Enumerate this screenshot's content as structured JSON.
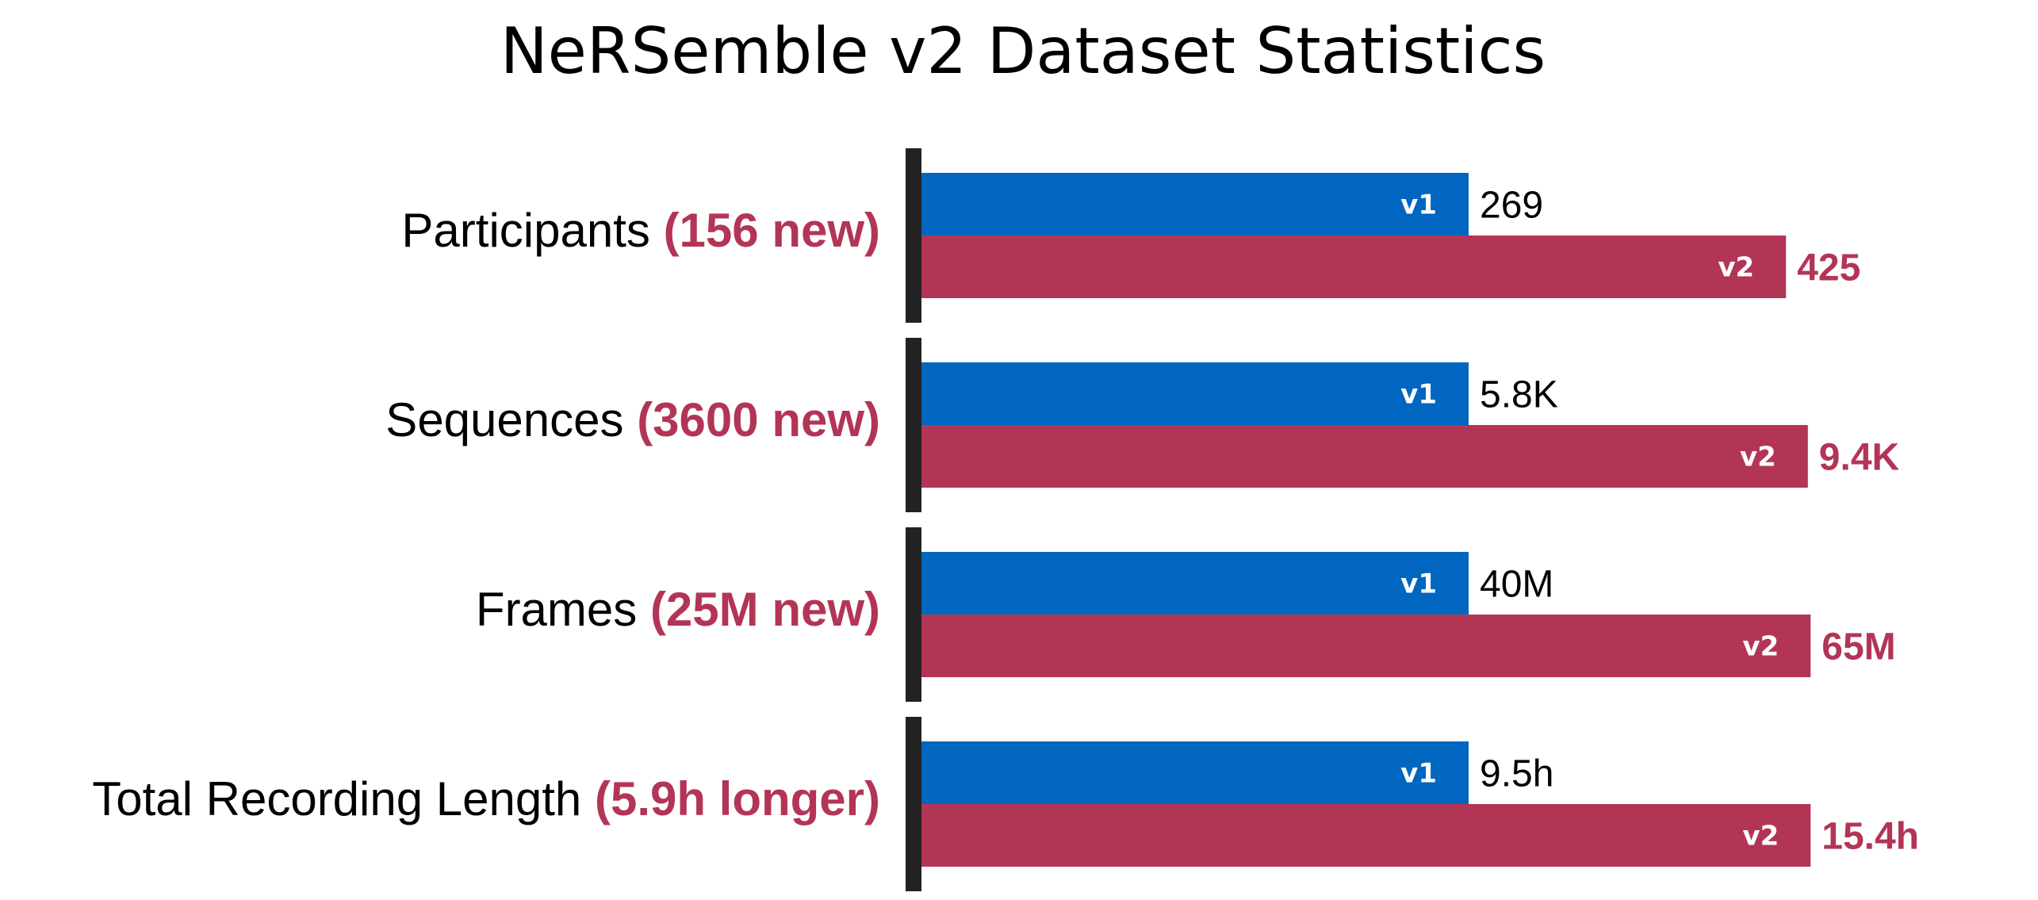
{
  "chart_data": {
    "type": "bar",
    "orientation": "horizontal",
    "title": "NeRSemble v2 Dataset Statistics",
    "colors": {
      "v1": "#0066c0",
      "v2": "#b33556",
      "separator": "#222222",
      "highlight": "#b33556"
    },
    "series_tags": [
      "v1",
      "v2"
    ],
    "categories": [
      {
        "name": "Participants",
        "note": "(156 new)",
        "v1_label": "269",
        "v2_label": "425"
      },
      {
        "name": "Sequences",
        "note": "(3600 new)",
        "v1_label": "5.8K",
        "v2_label": "9.4K"
      },
      {
        "name": "Frames",
        "note": "(25M new)",
        "v1_label": "40M",
        "v2_label": "65M"
      },
      {
        "name": "Total Recording Length",
        "note": "(5.9h longer)",
        "v1_label": "9.5h",
        "v2_label": "15.4h"
      }
    ],
    "relative_length": {
      "v1": [
        1,
        1,
        1,
        1
      ],
      "v2": [
        1.58,
        1.62,
        1.625,
        1.625
      ]
    },
    "grid": false,
    "legend": "none"
  }
}
